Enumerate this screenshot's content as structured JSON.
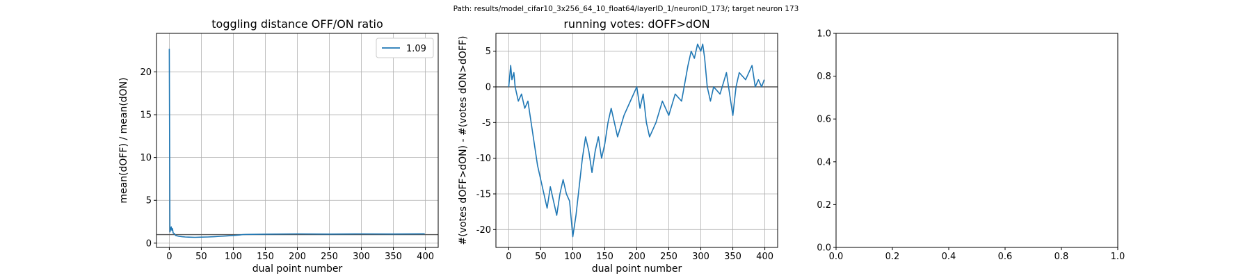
{
  "figure": {
    "suptitle": "Path: results/model_cifar10_3x256_64_10_float64/layerID_1/neuronID_173/; target neuron 173"
  },
  "colors": {
    "series": "#1f77b4",
    "hline": "#555555",
    "grid": "#b0b0b0"
  },
  "chart_data": [
    {
      "type": "line",
      "title": "toggling distance OFF/ON ratio",
      "xlabel": "dual point number",
      "ylabel": "mean(dOFF) / mean(dON)",
      "xlim": [
        -20,
        420
      ],
      "ylim": [
        -0.5,
        24.5
      ],
      "xticks": [
        0,
        50,
        100,
        150,
        200,
        250,
        300,
        350,
        400
      ],
      "yticks": [
        0,
        5,
        10,
        15,
        20
      ],
      "grid": true,
      "legend": {
        "placement": "top-right",
        "entries": [
          "1.09"
        ]
      },
      "hline": 1.0,
      "series": [
        {
          "name": "1.09",
          "x": [
            0,
            1,
            2,
            3,
            4,
            5,
            6,
            8,
            10,
            12,
            15,
            20,
            25,
            30,
            40,
            50,
            60,
            70,
            80,
            90,
            100,
            110,
            115,
            120,
            150,
            200,
            250,
            300,
            350,
            399
          ],
          "y": [
            22.7,
            1.3,
            1.6,
            1.9,
            1.5,
            1.7,
            1.2,
            1.1,
            0.9,
            0.85,
            0.8,
            0.75,
            0.72,
            0.7,
            0.68,
            0.7,
            0.72,
            0.75,
            0.8,
            0.85,
            0.9,
            0.95,
            1.0,
            1.02,
            1.05,
            1.08,
            1.06,
            1.08,
            1.07,
            1.09
          ]
        }
      ]
    },
    {
      "type": "line",
      "title": "running votes: dOFF>dON",
      "xlabel": "dual point number",
      "ylabel": "#(votes dOFF>dON) - #(votes dON>dOFF)",
      "xlim": [
        -20,
        420
      ],
      "ylim": [
        -22.5,
        7.5
      ],
      "xticks": [
        0,
        50,
        100,
        150,
        200,
        250,
        300,
        350,
        400
      ],
      "yticks": [
        -20,
        -15,
        -10,
        -5,
        0,
        5
      ],
      "grid": true,
      "hline": 0,
      "series": [
        {
          "x": [
            0,
            3,
            5,
            8,
            10,
            15,
            20,
            25,
            30,
            35,
            40,
            45,
            50,
            55,
            60,
            65,
            70,
            75,
            80,
            85,
            90,
            95,
            100,
            105,
            110,
            115,
            120,
            125,
            130,
            135,
            140,
            145,
            150,
            155,
            160,
            170,
            180,
            190,
            200,
            205,
            210,
            215,
            220,
            230,
            240,
            250,
            260,
            270,
            280,
            285,
            290,
            295,
            300,
            303,
            306,
            310,
            315,
            320,
            330,
            340,
            350,
            355,
            360,
            370,
            380,
            385,
            390,
            395,
            399
          ],
          "y": [
            0,
            3,
            1,
            2,
            0,
            -2,
            -1,
            -3,
            -2,
            -5,
            -8,
            -11,
            -13,
            -15,
            -17,
            -14,
            -16,
            -18,
            -15,
            -13,
            -15,
            -16,
            -21,
            -18,
            -14,
            -10,
            -7,
            -9,
            -12,
            -9,
            -7,
            -10,
            -8,
            -5,
            -3,
            -7,
            -4,
            -2,
            0,
            -3,
            -1,
            -5,
            -7,
            -5,
            -2,
            -4,
            -1,
            -2,
            3,
            5,
            4,
            6,
            5,
            6,
            4,
            0,
            -2,
            0,
            -1,
            2,
            -4,
            0,
            2,
            1,
            3,
            0,
            1,
            0,
            1
          ]
        }
      ]
    },
    {
      "type": "line",
      "title": "",
      "xlabel": "",
      "ylabel": "",
      "xlim": [
        0,
        1
      ],
      "ylim": [
        0,
        1
      ],
      "xticks": [
        0.0,
        0.2,
        0.4,
        0.6,
        0.8,
        1.0
      ],
      "yticks": [
        0.0,
        0.2,
        0.4,
        0.6,
        0.8,
        1.0
      ],
      "grid": false,
      "series": []
    }
  ]
}
